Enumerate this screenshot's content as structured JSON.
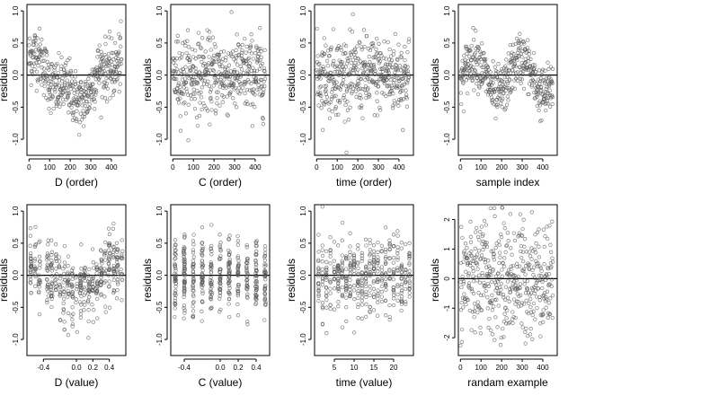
{
  "figure": {
    "ylabel": "residuals"
  },
  "chart_data": [
    {
      "id": "p1",
      "type": "scatter",
      "xlabel": "D (order)",
      "ylabel": "residuals",
      "xlim": [
        -10,
        470
      ],
      "ylim": [
        -1.25,
        1.1
      ],
      "xticks": [
        0,
        100,
        200,
        300,
        400
      ],
      "xtick_labels": [
        "0",
        "100",
        "200",
        "300",
        "400"
      ],
      "yticks": [
        -1.0,
        -0.5,
        0.0,
        0.5,
        1.0
      ],
      "ytick_labels": [
        "-1.0",
        "-0.5",
        "0.0",
        "0.5",
        "1.0"
      ],
      "hline": 0,
      "n": 450,
      "pattern": "wave_D"
    },
    {
      "id": "p2",
      "type": "scatter",
      "xlabel": "C (order)",
      "ylabel": "residuals",
      "xlim": [
        -10,
        470
      ],
      "ylim": [
        -1.25,
        1.1
      ],
      "xticks": [
        0,
        100,
        200,
        300,
        400
      ],
      "xtick_labels": [
        "0",
        "100",
        "200",
        "300",
        "400"
      ],
      "yticks": [
        -1.0,
        -0.5,
        0.0,
        0.5,
        1.0
      ],
      "ytick_labels": [
        "-1.0",
        "-0.5",
        "0.0",
        "0.5",
        "1.0"
      ],
      "hline": 0,
      "n": 450,
      "pattern": "flat"
    },
    {
      "id": "p3",
      "type": "scatter",
      "xlabel": "time (order)",
      "ylabel": "residuals",
      "xlim": [
        -10,
        470
      ],
      "ylim": [
        -1.25,
        1.1
      ],
      "xticks": [
        0,
        100,
        200,
        300,
        400
      ],
      "xtick_labels": [
        "0",
        "100",
        "200",
        "300",
        "400"
      ],
      "yticks": [
        -1.0,
        -0.5,
        0.0,
        0.5,
        1.0
      ],
      "ytick_labels": [
        "-1.0",
        "-0.5",
        "0.0",
        "0.5",
        "1.0"
      ],
      "hline": 0,
      "n": 450,
      "pattern": "flat"
    },
    {
      "id": "p4",
      "type": "scatter",
      "xlabel": "sample index",
      "ylabel": "residuals",
      "xlim": [
        -10,
        470
      ],
      "ylim": [
        -1.25,
        1.1
      ],
      "xticks": [
        0,
        100,
        200,
        300,
        400
      ],
      "xtick_labels": [
        "0",
        "100",
        "200",
        "300",
        "400"
      ],
      "yticks": [
        -1.0,
        -0.5,
        0.0,
        0.5,
        1.0
      ],
      "ytick_labels": [
        "-1.0",
        "-0.5",
        "0.0",
        "0.5",
        "1.0"
      ],
      "hline": 0,
      "n": 450,
      "pattern": "wave_idx"
    },
    {
      "id": "p5",
      "type": "scatter",
      "xlabel": "D (value)",
      "ylabel": "residuals",
      "xlim": [
        -0.6,
        0.6
      ],
      "ylim": [
        -1.25,
        1.1
      ],
      "xticks": [
        -0.4,
        0.0,
        0.2,
        0.4
      ],
      "xtick_labels": [
        "-0.4",
        "0.0",
        "0.2",
        "0.4"
      ],
      "yticks": [
        -1.0,
        -0.5,
        0.0,
        0.5,
        1.0
      ],
      "ytick_labels": [
        "-1.0",
        "-0.5",
        "0.0",
        "0.5",
        "1.0"
      ],
      "hline": 0,
      "n": 450,
      "pattern": "columns_D"
    },
    {
      "id": "p6",
      "type": "scatter",
      "xlabel": "C (value)",
      "ylabel": "residuals",
      "xlim": [
        -0.55,
        0.55
      ],
      "ylim": [
        -1.25,
        1.1
      ],
      "xticks": [
        -0.4,
        0.0,
        0.2,
        0.4
      ],
      "xtick_labels": [
        "-0.4",
        "0.0",
        "0.2",
        "0.4"
      ],
      "yticks": [
        -1.0,
        -0.5,
        0.0,
        0.5,
        1.0
      ],
      "ytick_labels": [
        "-1.0",
        "-0.5",
        "0.0",
        "0.5",
        "1.0"
      ],
      "hline": 0,
      "n": 450,
      "pattern": "columns_C"
    },
    {
      "id": "p7",
      "type": "scatter",
      "xlabel": "time (value)",
      "ylabel": "residuals",
      "xlim": [
        0,
        25
      ],
      "ylim": [
        -1.25,
        1.1
      ],
      "xticks": [
        5,
        10,
        15,
        20
      ],
      "xtick_labels": [
        "5",
        "10",
        "15",
        "20"
      ],
      "yticks": [
        -1.0,
        -0.5,
        0.0,
        0.5,
        1.0
      ],
      "ytick_labels": [
        "-1.0",
        "-0.5",
        "0.0",
        "0.5",
        "1.0"
      ],
      "hline": 0,
      "n": 450,
      "pattern": "columns_time"
    },
    {
      "id": "p8",
      "type": "scatter",
      "xlabel": "randam example",
      "ylabel": "residuals",
      "xlim": [
        -10,
        470
      ],
      "ylim": [
        -2.6,
        2.5
      ],
      "xticks": [
        0,
        100,
        200,
        300,
        400
      ],
      "xtick_labels": [
        "0",
        "100",
        "200",
        "300",
        "400"
      ],
      "yticks": [
        -2,
        -1,
        0,
        1,
        2
      ],
      "ytick_labels": [
        "-2",
        "-1",
        "0",
        "1",
        "2"
      ],
      "hline": 0,
      "n": 450,
      "pattern": "random"
    }
  ]
}
